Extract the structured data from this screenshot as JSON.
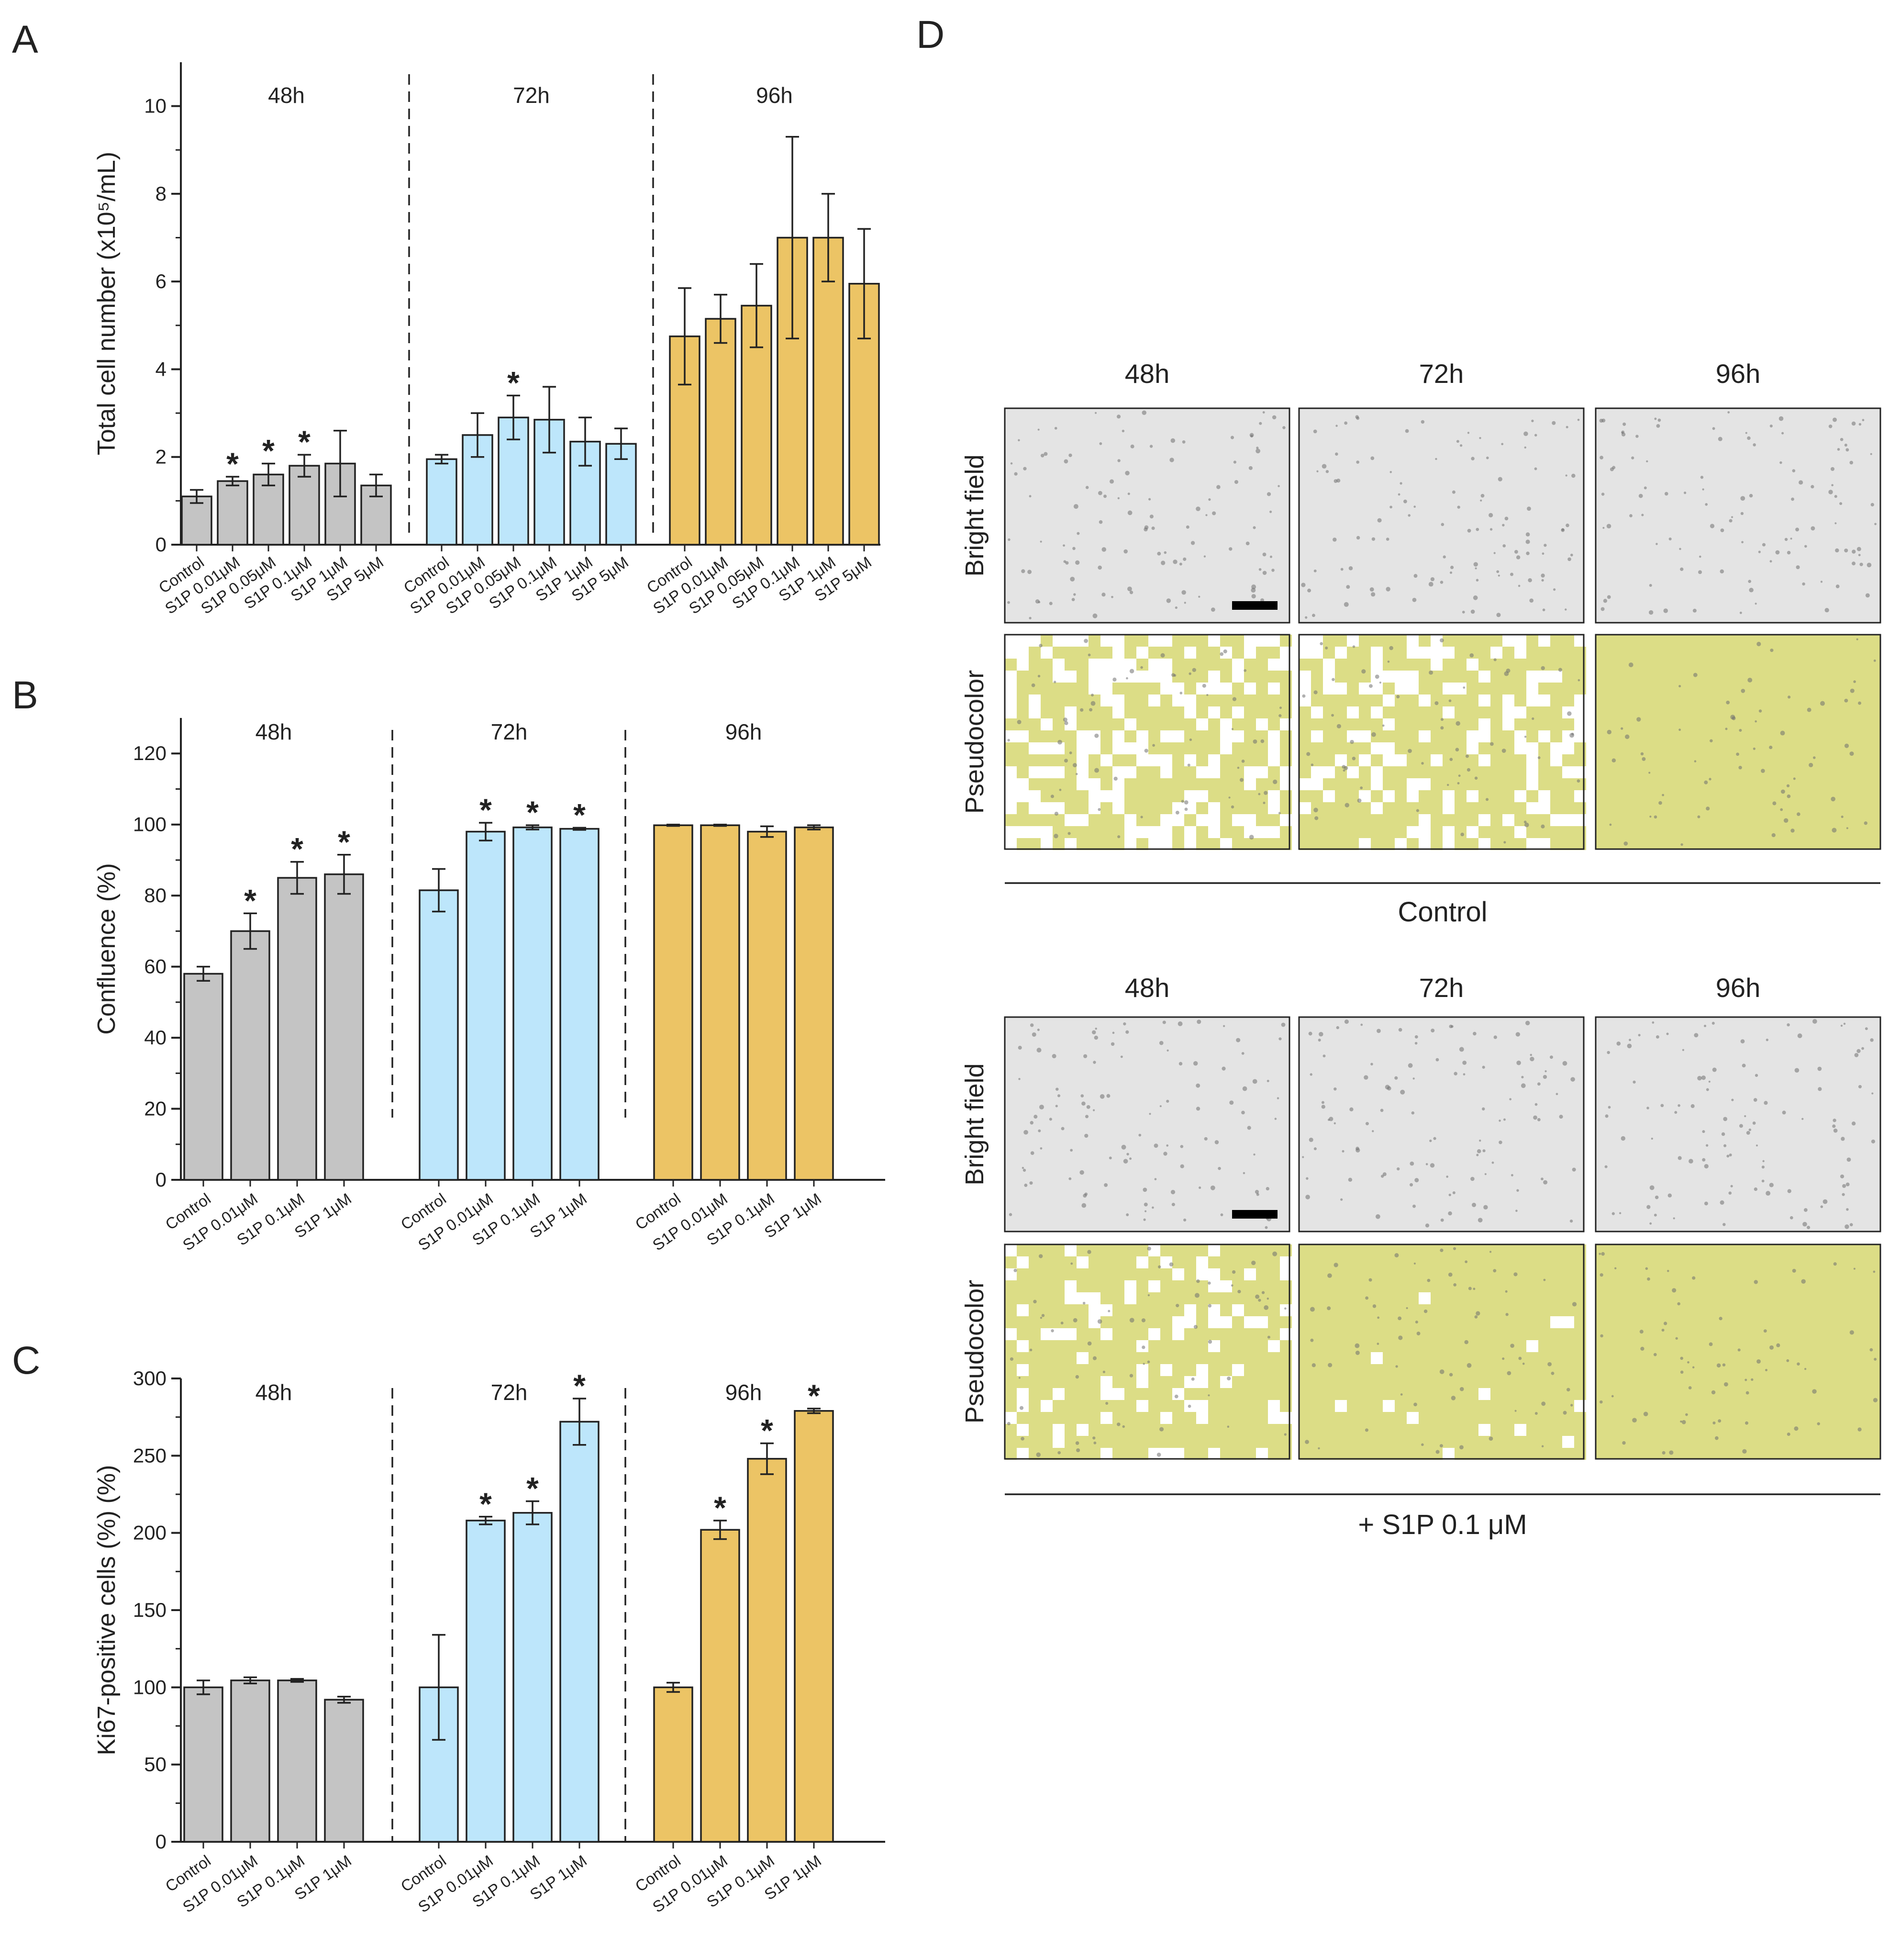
{
  "colors": {
    "gray": "#c4c4c4",
    "blue": "#bde6fb",
    "orange": "#ecc465",
    "axis": "#222222",
    "pseudo": "#dcdd86",
    "bright": "#e4e4e4"
  },
  "chart_data": [
    {
      "panel": "A",
      "type": "bar",
      "ylabel": "Total cell number (x10⁵/mL)",
      "ylim": [
        0,
        11
      ],
      "yticks": [
        "0",
        "2",
        "4",
        "6",
        "8",
        "10"
      ],
      "ytick_values": [
        0,
        2,
        4,
        6,
        8,
        10
      ],
      "categories": [
        "Control",
        "S1P 0.01μM",
        "S1P 0.05μM",
        "S1P 0.1μM",
        "S1P 1μM",
        "S1P 5μM"
      ],
      "groups": [
        {
          "name": "48h",
          "color": "gray",
          "values": [
            1.1,
            1.45,
            1.6,
            1.8,
            1.85,
            1.35
          ],
          "errors": [
            0.15,
            0.1,
            0.25,
            0.25,
            0.75,
            0.25
          ],
          "sig": [
            false,
            true,
            true,
            true,
            false,
            false
          ]
        },
        {
          "name": "72h",
          "color": "blue",
          "values": [
            1.95,
            2.5,
            2.9,
            2.85,
            2.35,
            2.3
          ],
          "errors": [
            0.1,
            0.5,
            0.5,
            0.75,
            0.55,
            0.35
          ],
          "sig": [
            false,
            false,
            true,
            false,
            false,
            false
          ]
        },
        {
          "name": "96h",
          "color": "orange",
          "values": [
            4.75,
            5.15,
            5.45,
            7.0,
            7.0,
            5.95
          ],
          "errors": [
            1.1,
            0.55,
            0.95,
            2.3,
            1.0,
            1.25
          ],
          "sig": [
            false,
            false,
            false,
            false,
            false,
            false
          ]
        }
      ]
    },
    {
      "panel": "B",
      "type": "bar",
      "ylabel": "Confluence (%)",
      "ylim": [
        0,
        130
      ],
      "yticks": [
        "0",
        "20",
        "40",
        "60",
        "80",
        "100",
        "120"
      ],
      "ytick_values": [
        0,
        20,
        40,
        60,
        80,
        100,
        120
      ],
      "categories": [
        "Control",
        "S1P 0.01μM",
        "S1P 0.1μM",
        "S1P 1μM"
      ],
      "groups": [
        {
          "name": "48h",
          "color": "gray",
          "values": [
            58,
            70,
            85,
            86
          ],
          "errors": [
            2,
            5,
            4.5,
            5.5
          ],
          "sig": [
            false,
            true,
            true,
            true
          ]
        },
        {
          "name": "72h",
          "color": "blue",
          "values": [
            81.5,
            98,
            99.2,
            98.8
          ],
          "errors": [
            6,
            2.5,
            0.6,
            0.3
          ],
          "sig": [
            false,
            true,
            true,
            true
          ]
        },
        {
          "name": "96h",
          "color": "orange",
          "values": [
            99.8,
            99.8,
            98,
            99.2
          ],
          "errors": [
            0.2,
            0.2,
            1.5,
            0.6
          ],
          "sig": [
            false,
            false,
            false,
            false
          ]
        }
      ]
    },
    {
      "panel": "C",
      "type": "bar",
      "ylabel": "Ki67-positive cells (%) (%)",
      "ylim": [
        0,
        300
      ],
      "yticks": [
        "0",
        "50",
        "100",
        "150",
        "200",
        "250",
        "300"
      ],
      "ytick_values": [
        0,
        50,
        100,
        150,
        200,
        250,
        300
      ],
      "categories": [
        "Control",
        "S1P 0.01μM",
        "S1P 0.1μM",
        "S1P 1μM"
      ],
      "groups": [
        {
          "name": "48h",
          "color": "gray",
          "values": [
            100,
            104.5,
            104.5,
            92
          ],
          "errors": [
            4.5,
            2,
            1,
            2
          ],
          "sig": [
            false,
            false,
            false,
            false
          ]
        },
        {
          "name": "72h",
          "color": "blue",
          "values": [
            100,
            208,
            213,
            272
          ],
          "errors": [
            34,
            2.5,
            7.5,
            15
          ],
          "sig": [
            false,
            true,
            true,
            true
          ]
        },
        {
          "name": "96h",
          "color": "orange",
          "values": [
            100,
            202,
            248,
            279
          ],
          "errors": [
            3,
            6,
            10,
            1.5
          ],
          "sig": [
            false,
            true,
            true,
            true
          ]
        }
      ]
    }
  ],
  "panel_d": {
    "letter": "D",
    "columns": [
      "48h",
      "72h",
      "96h"
    ],
    "rows": [
      "Bright field",
      "Pseudocolor"
    ],
    "sections": [
      {
        "caption": "Control",
        "fills": [
          [
            1.0,
            1.0,
            1.0
          ],
          [
            0.62,
            0.72,
            1.0
          ]
        ]
      },
      {
        "caption": "+ S1P 0.1 μM",
        "fills": [
          [
            1.0,
            1.0,
            1.0
          ],
          [
            0.78,
            0.98,
            1.0
          ]
        ]
      }
    ]
  },
  "labels": {
    "sig_marker": "*"
  }
}
